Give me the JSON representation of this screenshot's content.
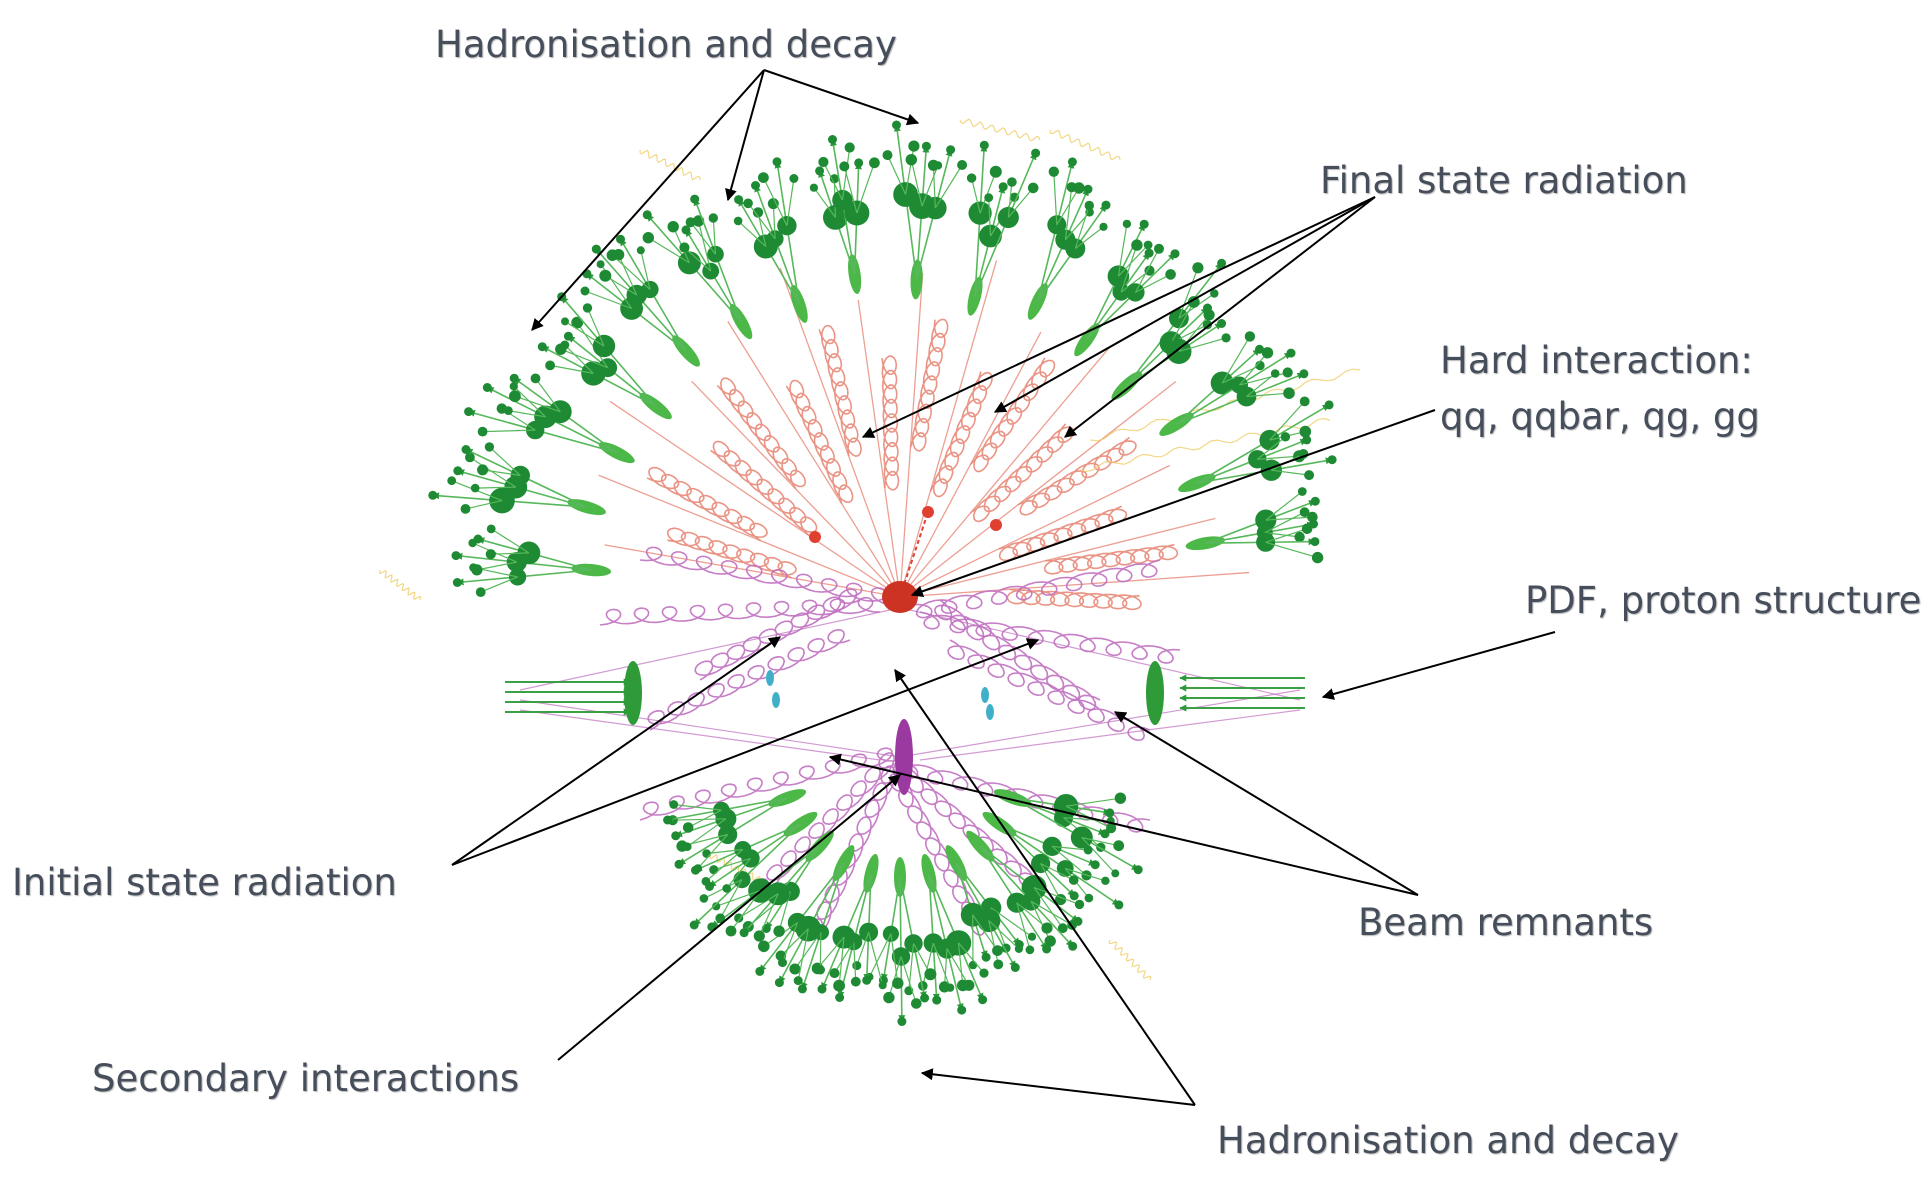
{
  "labels": {
    "hadronisation_top": "Hadronisation and decay",
    "final_state_radiation": "Final state radiation",
    "hard_interaction_title": "Hard interaction:",
    "hard_interaction_channels": "qq, qqbar, qg, gg",
    "pdf": "PDF, proton structure",
    "initial_state_radiation": "Initial state radiation",
    "beam_remnants": "Beam remnants",
    "secondary_interactions": "Secondary interactions",
    "hadronisation_bottom": "Hadronisation and decay"
  },
  "colors": {
    "label_text": "#454e5a",
    "arrow": "#000000",
    "hadron": "#1e8a34",
    "cluster": "#4cb848",
    "hard_process": "#cc3322",
    "fsr_gluon": "#e88878",
    "isr_gluon": "#c070c0",
    "secondary_blob": "#9a3aa0",
    "remnant": "#40b0c8"
  },
  "icons": {
    "hard_process": "hard-interaction-blob",
    "secondary": "secondary-interaction-blob",
    "cluster": "hadron-cluster-ellipse",
    "hadron": "hadron-dot",
    "gluon": "gluon-spiral"
  }
}
